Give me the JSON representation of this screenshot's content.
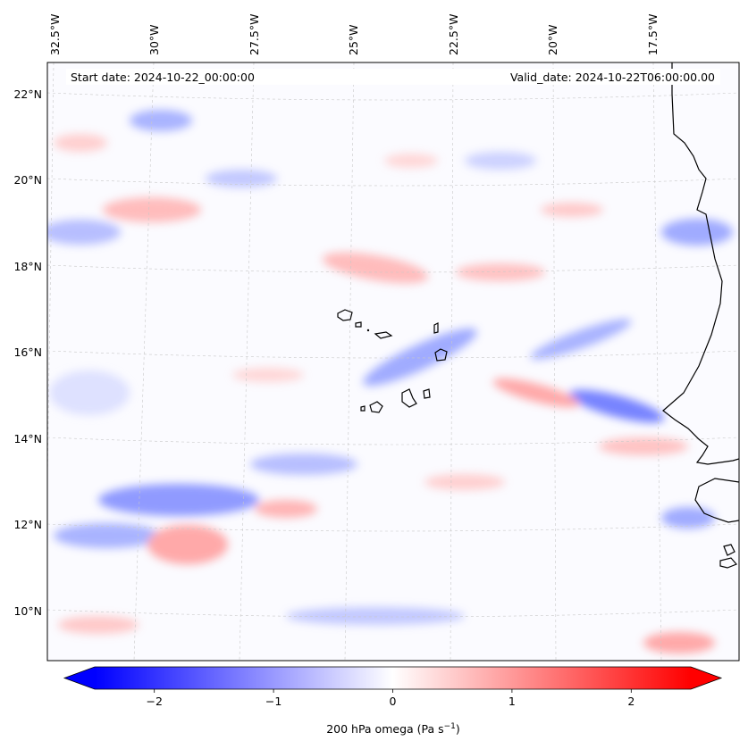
{
  "map": {
    "start_label": "Start date: 2024-10-22_00:00:00",
    "valid_label": "Valid_date: 2024-10-22T06:00:00.00",
    "lon_labels": [
      "32.5°W",
      "30°W",
      "27.5°W",
      "25°W",
      "22.5°W",
      "20°W",
      "17.5°W"
    ],
    "lat_labels": [
      "22°N",
      "20°N",
      "18°N",
      "16°N",
      "14°N",
      "12°N",
      "10°N"
    ],
    "field_colors": {
      "negative": "#0000ff",
      "zero": "#ffffff",
      "positive": "#ff0000"
    }
  },
  "colorbar": {
    "tick_labels": [
      "−2",
      "−1",
      "0",
      "1",
      "2"
    ],
    "tick_values": [
      -2,
      -1,
      0,
      1,
      2
    ],
    "range": [
      -2.5,
      2.5
    ],
    "label_main": "200 hPa omega (Pa s",
    "label_sup": "−1",
    "label_end": ")"
  }
}
